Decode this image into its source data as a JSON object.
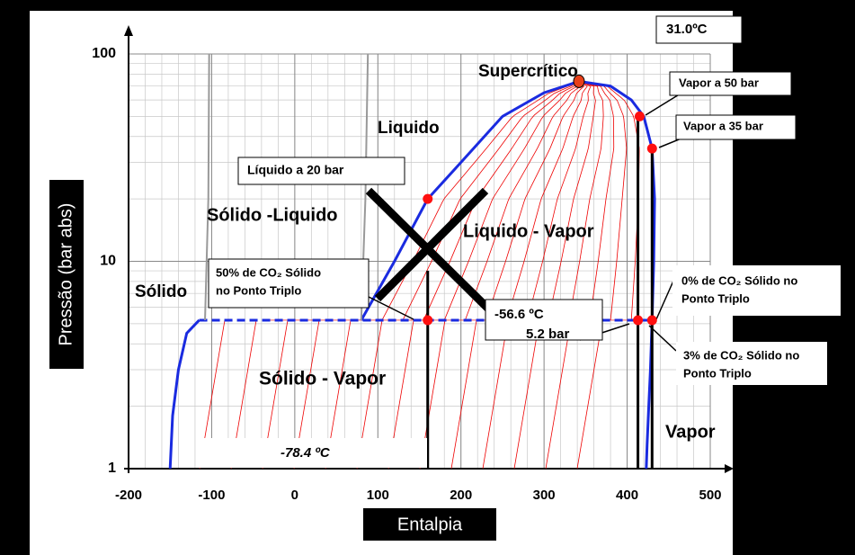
{
  "chart_data": {
    "type": "line",
    "x_label": "Entalpia",
    "y_label": "Pressão (bar abs)",
    "xlim": [
      -200,
      500
    ],
    "xticks": [
      -200,
      -100,
      0,
      100,
      200,
      300,
      400,
      500
    ],
    "ylim": [
      1,
      100
    ],
    "yticks": [
      1,
      10,
      100
    ],
    "log_y": true,
    "grid": true,
    "curves": [
      {
        "color": "#1a2be0",
        "x": [
          80,
          120,
          160,
          200,
          250,
          300,
          342,
          380,
          405,
          420,
          430,
          433,
          432,
          430
        ],
        "y": [
          5.2,
          10,
          20,
          30,
          50,
          65,
          73.8,
          70,
          60,
          50,
          35,
          20,
          10,
          5.2
        ]
      },
      {
        "color": "#1a2be0",
        "x": [
          430,
          428,
          426,
          424,
          423
        ],
        "y": [
          5.2,
          3,
          2,
          1.3,
          1
        ]
      },
      {
        "color": "#1a2be0",
        "x": [
          -115,
          -130,
          -140,
          -147,
          -150
        ],
        "y": [
          5.2,
          4.5,
          3,
          1.8,
          1
        ]
      },
      {
        "color": "#1a2be0",
        "dashed": true,
        "x": [
          -115,
          430
        ],
        "y": [
          5.2,
          5.2
        ]
      },
      {
        "color": "#999999",
        "x": [
          -108,
          -104,
          -103
        ],
        "y": [
          5.2,
          20,
          100
        ]
      },
      {
        "color": "#999999",
        "x": [
          80,
          85,
          88
        ],
        "y": [
          5.2,
          20,
          100
        ]
      },
      {
        "color": "#000000",
        "x": [
          160,
          160
        ],
        "y": [
          1,
          9
        ]
      },
      {
        "color": "#000000",
        "x": [
          413,
          413
        ],
        "y": [
          1,
          50
        ]
      },
      {
        "color": "#000000",
        "x": [
          430,
          430
        ],
        "y": [
          1,
          35
        ]
      }
    ],
    "points": {
      "color": "#ff1010",
      "x": [
        160,
        160,
        415,
        430,
        413,
        430
      ],
      "y": [
        20,
        5.2,
        50,
        35,
        5.2,
        5.2
      ]
    },
    "critical_point": {
      "color": "#e8401a",
      "x": 342,
      "y": 73.8
    },
    "annotations": [
      {
        "lines": [
          "31.0ºC"
        ]
      },
      {
        "lines": [
          "Supercrítico"
        ]
      },
      {
        "lines": [
          "Vapor a 50 bar"
        ]
      },
      {
        "lines": [
          "Vapor  a 35 bar"
        ]
      },
      {
        "lines": [
          "Liquido"
        ]
      },
      {
        "lines": [
          "Líquido a 20 bar"
        ]
      },
      {
        "lines": [
          "Sólido -Liquido"
        ]
      },
      {
        "lines": [
          "Liquido - Vapor"
        ]
      },
      {
        "lines": [
          "50% de CO₂ Sólido",
          "no Ponto Triplo"
        ]
      },
      {
        "lines": [
          "Sólido"
        ]
      },
      {
        "lines": [
          "-56.6 ºC",
          "5.2 bar"
        ]
      },
      {
        "lines": [
          "0% de CO₂ Sólido no",
          "Ponto Triplo"
        ]
      },
      {
        "lines": [
          "Sólido - Vapor"
        ]
      },
      {
        "lines": [
          "3% de CO₂ Sólido no",
          "Ponto Triplo"
        ]
      },
      {
        "lines": [
          "Vapor"
        ]
      },
      {
        "lines": [
          "-78.4 ºC"
        ]
      }
    ]
  }
}
